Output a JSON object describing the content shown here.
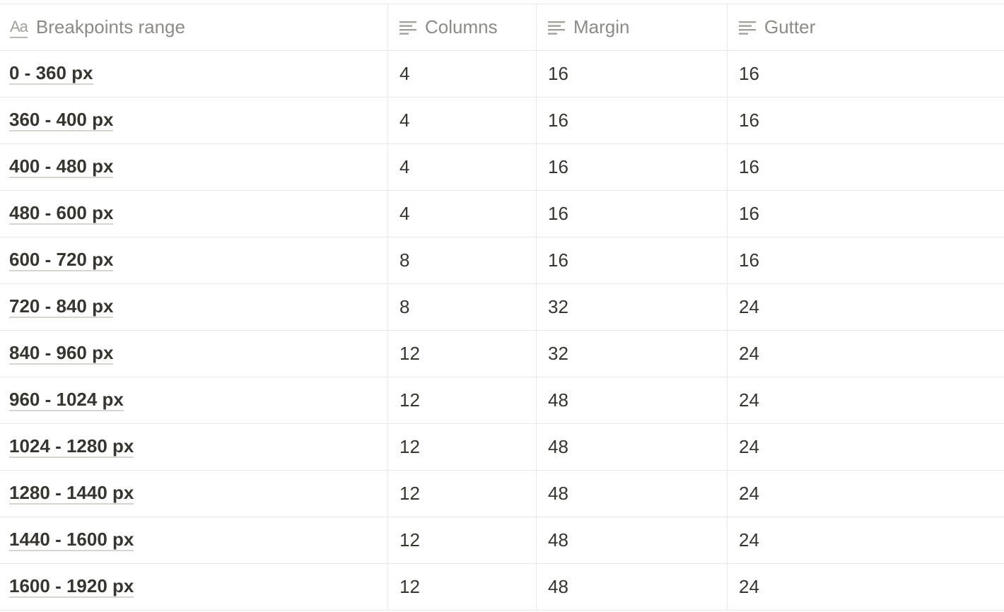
{
  "table": {
    "columns": [
      {
        "label": "Breakpoints range",
        "icon": "title-aa-icon"
      },
      {
        "label": "Columns",
        "icon": "text-lines-icon"
      },
      {
        "label": "Margin",
        "icon": "text-lines-icon"
      },
      {
        "label": "Gutter",
        "icon": "text-lines-icon"
      }
    ],
    "rows": [
      {
        "range": "0 - 360 px",
        "columns": "4",
        "margin": "16",
        "gutter": "16"
      },
      {
        "range": "360 - 400 px",
        "columns": "4",
        "margin": "16",
        "gutter": "16"
      },
      {
        "range": "400 - 480 px",
        "columns": "4",
        "margin": "16",
        "gutter": "16"
      },
      {
        "range": "480 - 600 px",
        "columns": "4",
        "margin": "16",
        "gutter": "16"
      },
      {
        "range": "600 - 720 px",
        "columns": "8",
        "margin": "16",
        "gutter": "16"
      },
      {
        "range": "720 - 840 px",
        "columns": "8",
        "margin": "32",
        "gutter": "24"
      },
      {
        "range": "840 - 960 px",
        "columns": "12",
        "margin": "32",
        "gutter": "24"
      },
      {
        "range": "960 - 1024 px",
        "columns": "12",
        "margin": "48",
        "gutter": "24"
      },
      {
        "range": "1024 - 1280 px",
        "columns": "12",
        "margin": "48",
        "gutter": "24"
      },
      {
        "range": "1280 - 1440 px",
        "columns": "12",
        "margin": "48",
        "gutter": "24"
      },
      {
        "range": "1440 - 1600 px",
        "columns": "12",
        "margin": "48",
        "gutter": "24"
      },
      {
        "range": "1600 - 1920 px",
        "columns": "12",
        "margin": "48",
        "gutter": "24"
      }
    ]
  }
}
